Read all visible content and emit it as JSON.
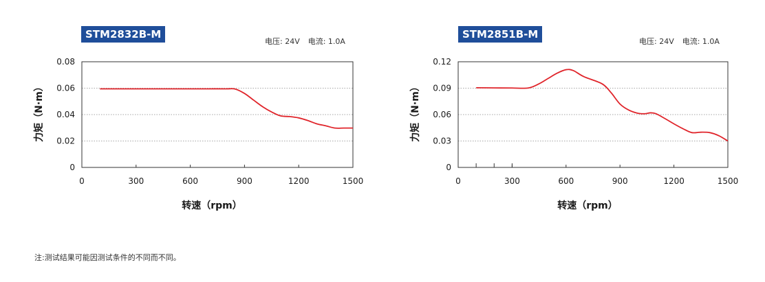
{
  "note": "注:测试结果可能因测试条件的不同而不同。",
  "chart_data": [
    {
      "type": "line",
      "model": "STM2832B-M",
      "voltage": "电压: 24V",
      "current": "电流: 1.0A",
      "xlabel": "转速（rpm）",
      "ylabel": "力矩（N·m）",
      "xlim": [
        0,
        1500
      ],
      "ylim": [
        0,
        0.08
      ],
      "xticks": [
        "0",
        "300",
        "600",
        "900",
        "1200",
        "1500"
      ],
      "yticks": [
        "0",
        "0.02",
        "0.04",
        "0.06",
        "0.08"
      ],
      "grid": "horizontal-dotted",
      "color": "#e0242a",
      "x": [
        100,
        200,
        300,
        400,
        500,
        600,
        700,
        800,
        850,
        900,
        950,
        1000,
        1050,
        1100,
        1150,
        1200,
        1250,
        1300,
        1350,
        1400,
        1450,
        1500
      ],
      "y": [
        0.0595,
        0.0595,
        0.0595,
        0.0595,
        0.0595,
        0.0595,
        0.0595,
        0.0595,
        0.0593,
        0.056,
        0.051,
        0.046,
        0.042,
        0.039,
        0.0385,
        0.0375,
        0.0355,
        0.033,
        0.0315,
        0.0298,
        0.0298,
        0.0298
      ]
    },
    {
      "type": "line",
      "model": "STM2851B-M",
      "voltage": "电压: 24V",
      "current": "电流: 1.0A",
      "xlabel": "转速（rpm）",
      "ylabel": "力矩（N·m）",
      "xlim": [
        0,
        1500
      ],
      "ylim": [
        0,
        0.12
      ],
      "xticks": [
        "0",
        "300",
        "600",
        "900",
        "1200",
        "1500"
      ],
      "yticks": [
        "0",
        "0.03",
        "0.06",
        "0.09",
        "0.12"
      ],
      "grid": "horizontal-dotted",
      "color": "#e0242a",
      "x": [
        100,
        200,
        300,
        390,
        450,
        500,
        550,
        600,
        640,
        700,
        800,
        850,
        900,
        950,
        1000,
        1040,
        1070,
        1100,
        1150,
        1200,
        1250,
        1300,
        1350,
        1400,
        1450,
        1500
      ],
      "y": [
        0.0905,
        0.0903,
        0.0902,
        0.0902,
        0.095,
        0.101,
        0.107,
        0.111,
        0.11,
        0.103,
        0.095,
        0.085,
        0.072,
        0.065,
        0.0615,
        0.061,
        0.062,
        0.061,
        0.0555,
        0.0495,
        0.044,
        0.0395,
        0.04,
        0.0395,
        0.036,
        0.03
      ]
    }
  ]
}
